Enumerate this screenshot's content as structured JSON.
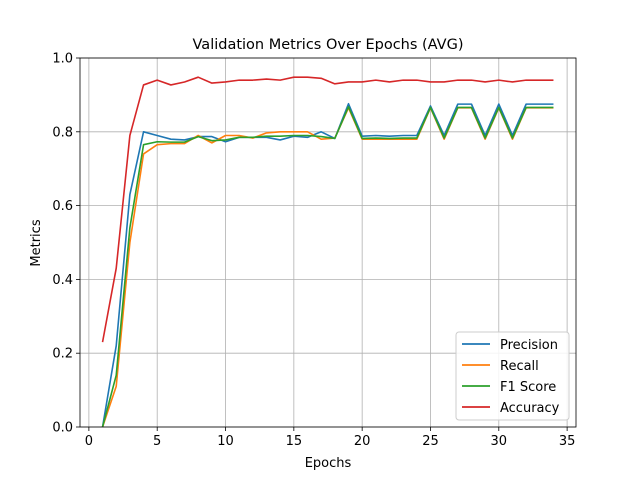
{
  "chart_data": {
    "type": "line",
    "title": "Validation Metrics Over Epochs (AVG)",
    "xlabel": "Epochs",
    "ylabel": "Metrics",
    "xlim": [
      -0.65,
      35.65
    ],
    "ylim": [
      0,
      1.0
    ],
    "xticks": [
      0,
      5,
      10,
      15,
      20,
      25,
      30,
      35
    ],
    "yticks": [
      0.0,
      0.2,
      0.4,
      0.6,
      0.8,
      1.0
    ],
    "xtick_labels": [
      "0",
      "5",
      "10",
      "15",
      "20",
      "25",
      "30",
      "35"
    ],
    "ytick_labels": [
      "0.0",
      "0.2",
      "0.4",
      "0.6",
      "0.8",
      "1.0"
    ],
    "grid": true,
    "legend_position": "lower-right",
    "x": [
      1,
      2,
      3,
      4,
      5,
      6,
      7,
      8,
      9,
      10,
      11,
      12,
      13,
      14,
      15,
      16,
      17,
      18,
      19,
      20,
      21,
      22,
      23,
      24,
      25,
      26,
      27,
      28,
      29,
      30,
      31,
      32,
      33,
      34
    ],
    "series": [
      {
        "name": "Precision",
        "color": "#1f77b4",
        "values": [
          0.0,
          0.22,
          0.63,
          0.8,
          0.79,
          0.78,
          0.778,
          0.787,
          0.787,
          0.773,
          0.785,
          0.785,
          0.785,
          0.778,
          0.788,
          0.785,
          0.8,
          0.782,
          0.876,
          0.788,
          0.79,
          0.788,
          0.79,
          0.79,
          0.87,
          0.79,
          0.875,
          0.875,
          0.79,
          0.875,
          0.79,
          0.875,
          0.875,
          0.875
        ]
      },
      {
        "name": "Recall",
        "color": "#ff7f0e",
        "values": [
          0.0,
          0.11,
          0.5,
          0.74,
          0.765,
          0.768,
          0.768,
          0.79,
          0.77,
          0.79,
          0.79,
          0.783,
          0.797,
          0.8,
          0.8,
          0.8,
          0.78,
          0.783,
          0.865,
          0.78,
          0.78,
          0.78,
          0.78,
          0.78,
          0.865,
          0.78,
          0.865,
          0.865,
          0.78,
          0.865,
          0.78,
          0.865,
          0.865,
          0.865
        ]
      },
      {
        "name": "F1 Score",
        "color": "#2ca02c",
        "values": [
          0.0,
          0.14,
          0.54,
          0.765,
          0.773,
          0.772,
          0.772,
          0.787,
          0.776,
          0.778,
          0.785,
          0.785,
          0.788,
          0.788,
          0.79,
          0.79,
          0.787,
          0.782,
          0.868,
          0.782,
          0.783,
          0.782,
          0.783,
          0.783,
          0.866,
          0.783,
          0.866,
          0.866,
          0.783,
          0.866,
          0.783,
          0.866,
          0.866,
          0.866
        ]
      },
      {
        "name": "Accuracy",
        "color": "#d62728",
        "values": [
          0.23,
          0.43,
          0.79,
          0.927,
          0.94,
          0.927,
          0.935,
          0.948,
          0.932,
          0.935,
          0.94,
          0.94,
          0.943,
          0.94,
          0.948,
          0.948,
          0.945,
          0.93,
          0.935,
          0.935,
          0.94,
          0.935,
          0.94,
          0.94,
          0.935,
          0.935,
          0.94,
          0.94,
          0.935,
          0.94,
          0.935,
          0.94,
          0.94,
          0.94
        ]
      }
    ]
  }
}
